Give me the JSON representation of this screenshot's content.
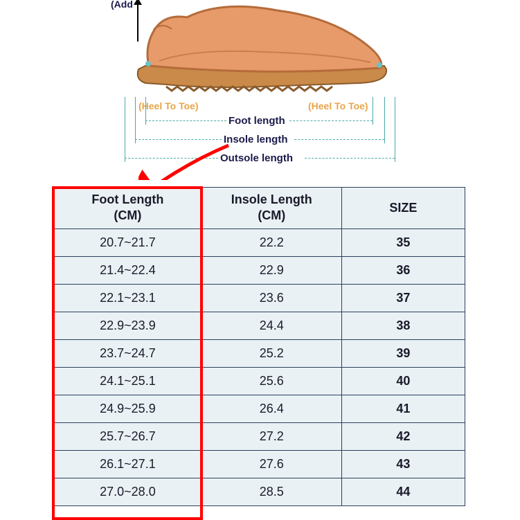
{
  "diagram": {
    "top_label": "(Add",
    "heel_to_toe": "(Heel To Toe)",
    "foot_length_label": "Foot length",
    "insole_length_label": "Insole length",
    "outsole_length_label": "Outsole length",
    "foot_fill": "#e89b6a",
    "foot_outline": "#b56b3a",
    "sole_fill": "#c98a4a",
    "label_orange": "#e8a54a",
    "label_dark": "#1a1a4a",
    "measure_line_color": "#4aa8a8",
    "arrow_red": "#ff0000"
  },
  "table": {
    "background": "#eaf1f5",
    "border_color": "#2a3f5a",
    "highlight_border": "#ff0000",
    "columns": [
      {
        "key": "foot",
        "label_l1": "Foot Length",
        "label_l2": "(CM)"
      },
      {
        "key": "insole",
        "label_l1": "Insole Length",
        "label_l2": "(CM)"
      },
      {
        "key": "size",
        "label_l1": "SIZE",
        "label_l2": ""
      }
    ],
    "rows": [
      {
        "foot": "20.7~21.7",
        "insole": "22.2",
        "size": "35"
      },
      {
        "foot": "21.4~22.4",
        "insole": "22.9",
        "size": "36"
      },
      {
        "foot": "22.1~23.1",
        "insole": "23.6",
        "size": "37"
      },
      {
        "foot": "22.9~23.9",
        "insole": "24.4",
        "size": "38"
      },
      {
        "foot": "23.7~24.7",
        "insole": "25.2",
        "size": "39"
      },
      {
        "foot": "24.1~25.1",
        "insole": "25.6",
        "size": "40"
      },
      {
        "foot": "24.9~25.9",
        "insole": "26.4",
        "size": "41"
      },
      {
        "foot": "25.7~26.7",
        "insole": "27.2",
        "size": "42"
      },
      {
        "foot": "26.1~27.1",
        "insole": "27.6",
        "size": "43"
      },
      {
        "foot": "27.0~28.0",
        "insole": "28.5",
        "size": "44"
      }
    ]
  }
}
